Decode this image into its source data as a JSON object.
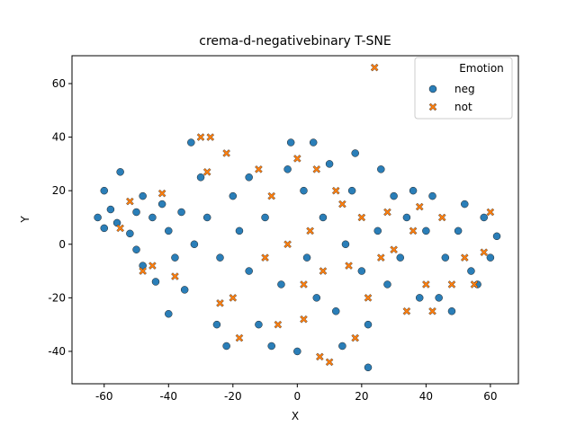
{
  "chart_data": {
    "type": "scatter",
    "title": "crema-d-negativebinary T-SNE",
    "x_label": "X",
    "y_label": "Y",
    "xlim": [
      -70,
      68.7
    ],
    "ylim": [
      -52.1,
      70.4
    ],
    "xticks": [
      -60,
      -40,
      -20,
      0,
      20,
      40,
      60
    ],
    "yticks": [
      -40,
      -20,
      0,
      20,
      40,
      60
    ],
    "grid": false,
    "legend": {
      "title": "Emotion",
      "position": "upper right"
    },
    "series": [
      {
        "name": "neg",
        "color": "#1f77b4",
        "marker": "circle",
        "x": [
          -62,
          -60,
          -58,
          -60,
          -55,
          -56,
          -52,
          -50,
          -48,
          -50,
          -48,
          -45,
          -42,
          -40,
          -44,
          -40,
          -38,
          -35,
          -33,
          -30,
          -28,
          -32,
          -25,
          -22,
          -20,
          -18,
          -15,
          -15,
          -12,
          -10,
          -8,
          -5,
          -3,
          -2,
          0,
          2,
          3,
          5,
          6,
          8,
          10,
          12,
          14,
          15,
          17,
          20,
          22,
          22,
          25,
          26,
          28,
          30,
          32,
          34,
          36,
          38,
          40,
          42,
          44,
          46,
          48,
          50,
          52,
          54,
          56,
          58,
          60,
          62,
          18,
          -24,
          -36
        ],
        "y": [
          10,
          6,
          13,
          20,
          27,
          8,
          4,
          -2,
          -8,
          12,
          18,
          10,
          15,
          5,
          -14,
          -26,
          -5,
          -17,
          38,
          25,
          10,
          0,
          -30,
          -38,
          18,
          5,
          -10,
          25,
          -30,
          10,
          -38,
          -15,
          28,
          38,
          -40,
          20,
          -5,
          38,
          -20,
          10,
          30,
          -25,
          -38,
          0,
          20,
          -10,
          -46,
          -30,
          5,
          28,
          -15,
          18,
          -5,
          10,
          20,
          -20,
          5,
          18,
          -20,
          -5,
          -25,
          5,
          15,
          -10,
          -15,
          10,
          -5,
          3,
          34,
          -5,
          12
        ]
      },
      {
        "name": "not",
        "color": "#ff7f0e",
        "marker": "x",
        "x": [
          -55,
          -52,
          -45,
          -38,
          -30,
          -27,
          -28,
          -22,
          -20,
          -18,
          -12,
          -10,
          -8,
          -6,
          -3,
          0,
          2,
          4,
          6,
          8,
          10,
          12,
          14,
          16,
          18,
          20,
          22,
          24,
          26,
          28,
          30,
          34,
          36,
          38,
          40,
          42,
          45,
          48,
          52,
          55,
          58,
          60,
          -42,
          -48,
          2,
          7,
          -24
        ],
        "y": [
          6,
          16,
          -8,
          -12,
          40,
          40,
          27,
          34,
          -20,
          -35,
          28,
          -5,
          18,
          -30,
          0,
          32,
          -28,
          5,
          28,
          -10,
          -44,
          20,
          15,
          -8,
          -35,
          10,
          -20,
          66,
          -5,
          12,
          -2,
          -25,
          5,
          14,
          -15,
          -25,
          10,
          -15,
          -5,
          -15,
          -3,
          12,
          19,
          -10,
          -15,
          -42,
          -22
        ]
      }
    ]
  }
}
